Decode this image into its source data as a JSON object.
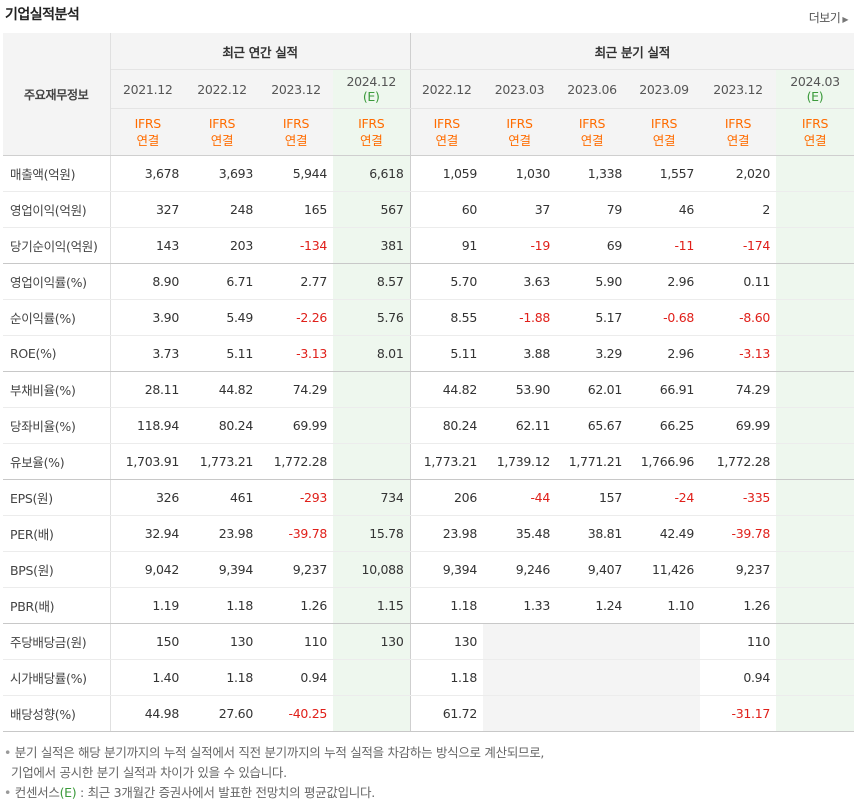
{
  "header": {
    "title": "기업실적분석",
    "more_label": "더보기"
  },
  "table": {
    "corner_label": "주요재무정보",
    "annual_group": "최근 연간 실적",
    "quarter_group": "최근 분기 실적",
    "annual_columns": [
      {
        "date": "2021.12",
        "estimate": "",
        "ifrs": "IFRS",
        "basis": "연결"
      },
      {
        "date": "2022.12",
        "estimate": "",
        "ifrs": "IFRS",
        "basis": "연결"
      },
      {
        "date": "2023.12",
        "estimate": "",
        "ifrs": "IFRS",
        "basis": "연결"
      },
      {
        "date": "2024.12",
        "estimate": "(E)",
        "ifrs": "IFRS",
        "basis": "연결"
      }
    ],
    "quarter_columns": [
      {
        "date": "2022.12",
        "estimate": "",
        "ifrs": "IFRS",
        "basis": "연결"
      },
      {
        "date": "2023.03",
        "estimate": "",
        "ifrs": "IFRS",
        "basis": "연결"
      },
      {
        "date": "2023.06",
        "estimate": "",
        "ifrs": "IFRS",
        "basis": "연결"
      },
      {
        "date": "2023.09",
        "estimate": "",
        "ifrs": "IFRS",
        "basis": "연결"
      },
      {
        "date": "2023.12",
        "estimate": "",
        "ifrs": "IFRS",
        "basis": "연결"
      },
      {
        "date": "2024.03",
        "estimate": "(E)",
        "ifrs": "IFRS",
        "basis": "연결"
      }
    ],
    "rows": [
      {
        "label": "매출액(억원)",
        "values": [
          "3,678",
          "3,693",
          "5,944",
          "6,618",
          "1,059",
          "1,030",
          "1,338",
          "1,557",
          "2,020",
          ""
        ]
      },
      {
        "label": "영업이익(억원)",
        "values": [
          "327",
          "248",
          "165",
          "567",
          "60",
          "37",
          "79",
          "46",
          "2",
          ""
        ]
      },
      {
        "label": "당기순이익(억원)",
        "values": [
          "143",
          "203",
          "-134",
          "381",
          "91",
          "-19",
          "69",
          "-11",
          "-174",
          ""
        ]
      },
      {
        "label": "영업이익률(%)",
        "values": [
          "8.90",
          "6.71",
          "2.77",
          "8.57",
          "5.70",
          "3.63",
          "5.90",
          "2.96",
          "0.11",
          ""
        ]
      },
      {
        "label": "순이익률(%)",
        "values": [
          "3.90",
          "5.49",
          "-2.26",
          "5.76",
          "8.55",
          "-1.88",
          "5.17",
          "-0.68",
          "-8.60",
          ""
        ]
      },
      {
        "label": "ROE(%)",
        "values": [
          "3.73",
          "5.11",
          "-3.13",
          "8.01",
          "5.11",
          "3.88",
          "3.29",
          "2.96",
          "-3.13",
          ""
        ]
      },
      {
        "label": "부채비율(%)",
        "values": [
          "28.11",
          "44.82",
          "74.29",
          "",
          "44.82",
          "53.90",
          "62.01",
          "66.91",
          "74.29",
          ""
        ]
      },
      {
        "label": "당좌비율(%)",
        "values": [
          "118.94",
          "80.24",
          "69.99",
          "",
          "80.24",
          "62.11",
          "65.67",
          "66.25",
          "69.99",
          ""
        ]
      },
      {
        "label": "유보율(%)",
        "values": [
          "1,703.91",
          "1,773.21",
          "1,772.28",
          "",
          "1,773.21",
          "1,739.12",
          "1,771.21",
          "1,766.96",
          "1,772.28",
          ""
        ]
      },
      {
        "label": "EPS(원)",
        "values": [
          "326",
          "461",
          "-293",
          "734",
          "206",
          "-44",
          "157",
          "-24",
          "-335",
          ""
        ]
      },
      {
        "label": "PER(배)",
        "values": [
          "32.94",
          "23.98",
          "-39.78",
          "15.78",
          "23.98",
          "35.48",
          "38.81",
          "42.49",
          "-39.78",
          ""
        ]
      },
      {
        "label": "BPS(원)",
        "values": [
          "9,042",
          "9,394",
          "9,237",
          "10,088",
          "9,394",
          "9,246",
          "9,407",
          "11,426",
          "9,237",
          ""
        ]
      },
      {
        "label": "PBR(배)",
        "values": [
          "1.19",
          "1.18",
          "1.26",
          "1.15",
          "1.18",
          "1.33",
          "1.24",
          "1.10",
          "1.26",
          ""
        ]
      },
      {
        "label": "주당배당금(원)",
        "values": [
          "150",
          "130",
          "110",
          "130",
          "130",
          "",
          "",
          "",
          "110",
          ""
        ]
      },
      {
        "label": "시가배당률(%)",
        "values": [
          "1.40",
          "1.18",
          "0.94",
          "",
          "1.18",
          "",
          "",
          "",
          "0.94",
          ""
        ]
      },
      {
        "label": "배당성향(%)",
        "values": [
          "44.98",
          "27.60",
          "-40.25",
          "",
          "61.72",
          "",
          "",
          "",
          "-31.17",
          ""
        ]
      }
    ]
  },
  "notes": {
    "line1": "분기 실적은 해당 분기까지의 누적 실적에서 직전 분기까지의 누적 실적을 차감하는 방식으로 계산되므로,",
    "line2": "기업에서 공시한 분기 실적과 차이가 있을 수 있습니다.",
    "line3_prefix": "컨센서스",
    "line3_e": "(E)",
    "line3_suffix": " : 최근 3개월간 증권사에서 발표한 전망치의 평균값입니다."
  }
}
